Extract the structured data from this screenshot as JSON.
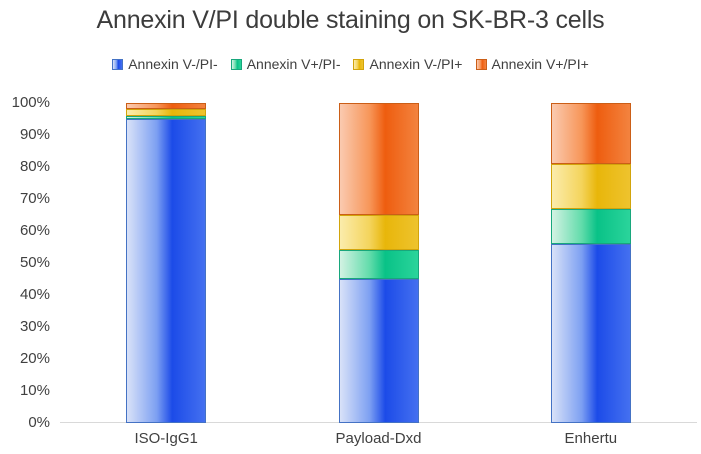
{
  "chart_data": {
    "type": "bar",
    "stacked": true,
    "percent_stacked": true,
    "title": "Annexin V/PI double staining on SK-BR-3 cells",
    "categories": [
      "ISO-IgG1",
      "Payload-Dxd",
      "Enhertu"
    ],
    "series": [
      {
        "name": "Annexin V-/PI-",
        "values": [
          95,
          45,
          56
        ],
        "border": "#4472C4",
        "gradient": [
          "#D9E2F8",
          "#7DA0F2",
          "#1C4BE8",
          "#4470F0"
        ]
      },
      {
        "name": "Annexin V+/PI-",
        "values": [
          1,
          9,
          11
        ],
        "border": "#18A77C",
        "gradient": [
          "#D3F2E3",
          "#62DCAB",
          "#09C287",
          "#2BD49B"
        ]
      },
      {
        "name": "Annexin V-/PI+",
        "values": [
          2,
          11,
          14
        ],
        "border": "#D2A40B",
        "gradient": [
          "#FBECAC",
          "#F4D45C",
          "#E8B60A",
          "#EEC32E"
        ]
      },
      {
        "name": "Annexin V+/PI+",
        "values": [
          2,
          35,
          19
        ],
        "border": "#CB5E17",
        "gradient": [
          "#FACAB0",
          "#F79659",
          "#EE5D0F",
          "#F3833F"
        ]
      }
    ],
    "y_tick_labels": [
      "0%",
      "10%",
      "20%",
      "30%",
      "40%",
      "50%",
      "60%",
      "70%",
      "80%",
      "90%",
      "100%"
    ],
    "ylim": [
      0,
      100
    ],
    "legend_position": "top",
    "gridlines": false,
    "axis_line_color": "#D9D9D9",
    "text_color": "#404040",
    "title_color": "#3C3C3C"
  }
}
